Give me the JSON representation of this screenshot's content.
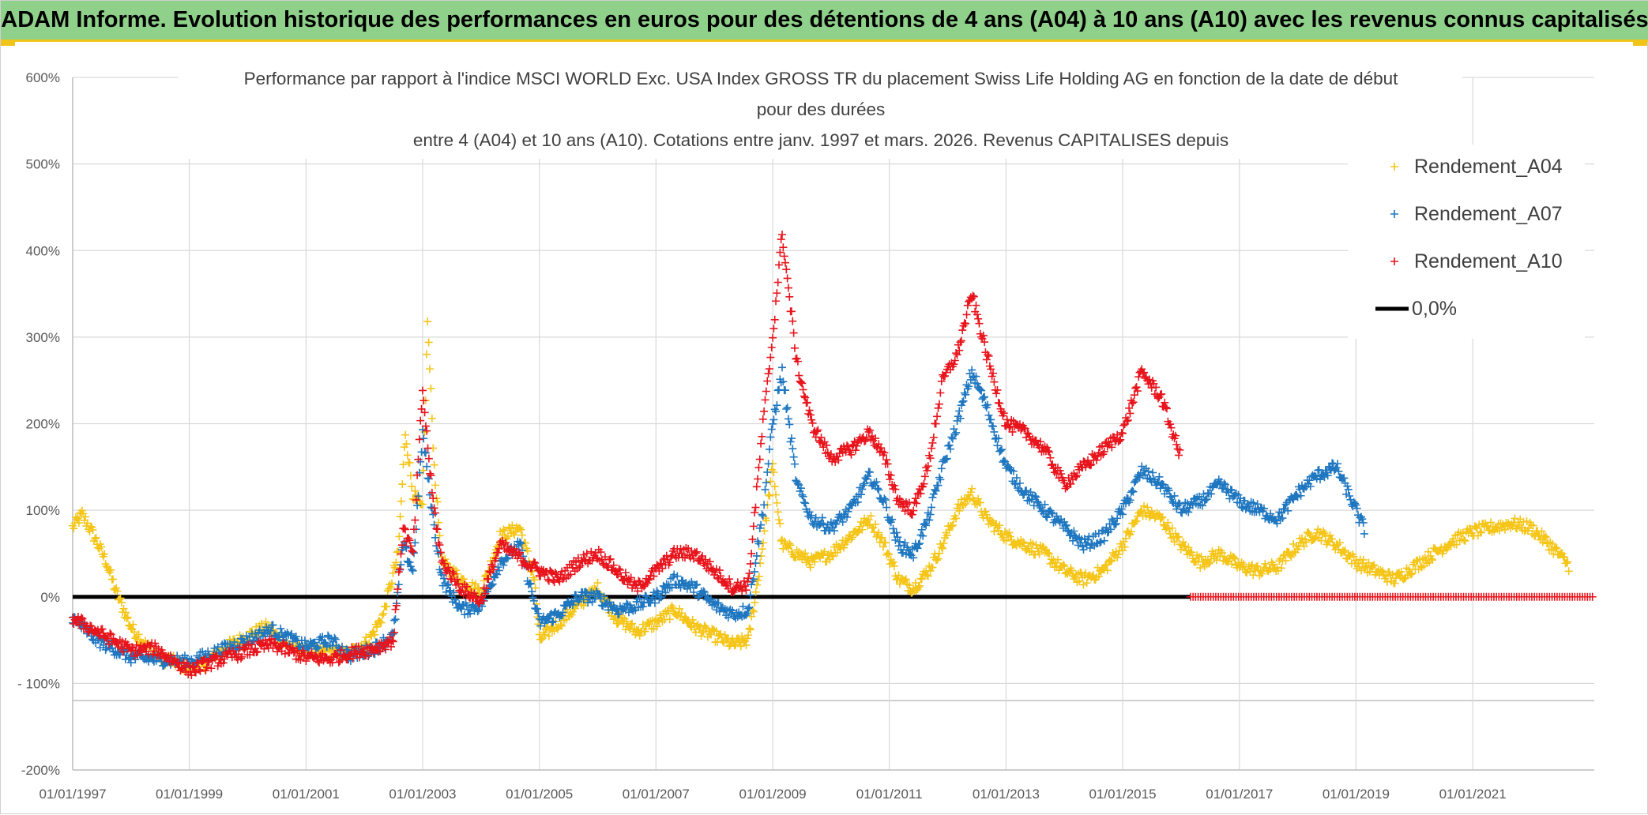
{
  "banner": {
    "text": "ADAM Informe. Evolution historique des performances en euros pour des détentions de 4 ans (A04) à 10 ans (A10) avec les revenus connus capitalisés"
  },
  "colors": {
    "banner_bg": "#8fd18a",
    "banner_accent": "#f0c419",
    "A04": "#f5c518",
    "A07": "#1f77c0",
    "A10": "#e8141c",
    "zero": "#000000"
  },
  "chart_data": {
    "type": "scatter",
    "title_lines": [
      "Performance par rapport à l'indice MSCI WORLD Exc. USA Index GROSS TR  du placement Swiss Life Holding AG en fonction de la date de début",
      "pour des durées",
      "entre 4 (A04) et 10 ans (A10). Cotations entre janv. 1997 et mars. 2026. Revenus CAPITALISES depuis"
    ],
    "xlabel": "",
    "ylabel": "",
    "x_range": [
      "1997-01-01",
      "2023-02-01"
    ],
    "y_range": [
      -200,
      600
    ],
    "y_ticks": [
      -200,
      -100,
      0,
      100,
      200,
      300,
      400,
      500,
      600
    ],
    "y_tick_labels": [
      "-200%",
      "- 100%",
      "0%",
      "100%",
      "200%",
      "300%",
      "400%",
      "500%",
      "600%"
    ],
    "x_tick_labels": [
      "01/01/1997",
      "01/01/1999",
      "01/01/2001",
      "01/01/2003",
      "01/01/2005",
      "01/01/2007",
      "01/01/2009",
      "01/01/2011",
      "01/01/2013",
      "01/01/2015",
      "01/01/2017",
      "01/01/2019",
      "01/01/2021"
    ],
    "grid": true,
    "legend_position": "top-right",
    "series": [
      {
        "name": "Rendement_A04",
        "color": "#f5c518",
        "marker": "+",
        "points": [
          [
            "1997-01-01",
            80
          ],
          [
            "1997-03-01",
            95
          ],
          [
            "1997-05-01",
            75
          ],
          [
            "1997-08-01",
            40
          ],
          [
            "1997-10-01",
            5
          ],
          [
            "1998-01-01",
            -35
          ],
          [
            "1998-04-01",
            -55
          ],
          [
            "1998-07-01",
            -70
          ],
          [
            "1998-10-01",
            -75
          ],
          [
            "1999-01-01",
            -82
          ],
          [
            "1999-04-01",
            -78
          ],
          [
            "1999-08-01",
            -60
          ],
          [
            "2000-01-01",
            -45
          ],
          [
            "2000-05-01",
            -35
          ],
          [
            "2000-09-01",
            -55
          ],
          [
            "2001-01-01",
            -62
          ],
          [
            "2001-06-01",
            -65
          ],
          [
            "2001-10-01",
            -65
          ],
          [
            "2002-02-01",
            -50
          ],
          [
            "2002-05-01",
            -20
          ],
          [
            "2002-08-01",
            50
          ],
          [
            "2002-09-15",
            190
          ],
          [
            "2002-11-01",
            120
          ],
          [
            "2003-01-01",
            100
          ],
          [
            "2003-02-01",
            320
          ],
          [
            "2003-03-15",
            150
          ],
          [
            "2003-05-01",
            40
          ],
          [
            "2003-09-01",
            20
          ],
          [
            "2004-01-01",
            5
          ],
          [
            "2004-05-01",
            70
          ],
          [
            "2004-09-01",
            80
          ],
          [
            "2004-12-01",
            20
          ],
          [
            "2005-01-01",
            -50
          ],
          [
            "2005-05-01",
            -30
          ],
          [
            "2005-09-01",
            -10
          ],
          [
            "2006-01-01",
            10
          ],
          [
            "2006-05-01",
            -25
          ],
          [
            "2006-09-01",
            -40
          ],
          [
            "2007-01-01",
            -30
          ],
          [
            "2007-05-01",
            -15
          ],
          [
            "2007-09-01",
            -35
          ],
          [
            "2008-01-01",
            -45
          ],
          [
            "2008-05-01",
            -55
          ],
          [
            "2008-08-01",
            -50
          ],
          [
            "2008-10-01",
            20
          ],
          [
            "2009-01-01",
            150
          ],
          [
            "2009-03-01",
            60
          ],
          [
            "2009-06-01",
            50
          ],
          [
            "2009-09-01",
            40
          ],
          [
            "2010-01-01",
            50
          ],
          [
            "2010-05-01",
            70
          ],
          [
            "2010-09-01",
            90
          ],
          [
            "2010-12-01",
            60
          ],
          [
            "2011-03-01",
            20
          ],
          [
            "2011-06-01",
            10
          ],
          [
            "2011-09-01",
            30
          ],
          [
            "2011-12-01",
            60
          ],
          [
            "2012-03-01",
            100
          ],
          [
            "2012-06-01",
            120
          ],
          [
            "2012-09-01",
            90
          ],
          [
            "2013-01-01",
            70
          ],
          [
            "2013-05-01",
            60
          ],
          [
            "2013-09-01",
            50
          ],
          [
            "2014-01-01",
            30
          ],
          [
            "2014-05-01",
            20
          ],
          [
            "2014-09-01",
            30
          ],
          [
            "2015-01-01",
            60
          ],
          [
            "2015-05-01",
            100
          ],
          [
            "2015-09-01",
            90
          ],
          [
            "2016-01-01",
            60
          ],
          [
            "2016-05-01",
            40
          ],
          [
            "2016-09-01",
            50
          ],
          [
            "2017-01-01",
            35
          ],
          [
            "2017-05-01",
            30
          ],
          [
            "2017-09-01",
            35
          ],
          [
            "2018-01-01",
            60
          ],
          [
            "2018-05-01",
            75
          ],
          [
            "2018-09-01",
            60
          ],
          [
            "2019-01-01",
            40
          ],
          [
            "2019-05-01",
            30
          ],
          [
            "2019-09-01",
            20
          ],
          [
            "2020-01-01",
            35
          ],
          [
            "2020-05-01",
            50
          ],
          [
            "2020-09-01",
            65
          ],
          [
            "2021-01-01",
            75
          ],
          [
            "2021-05-01",
            80
          ],
          [
            "2021-09-01",
            85
          ],
          [
            "2022-01-01",
            80
          ],
          [
            "2022-05-01",
            60
          ],
          [
            "2022-09-01",
            35
          ]
        ]
      },
      {
        "name": "Rendement_A07",
        "color": "#1f77c0",
        "marker": "+",
        "points": [
          [
            "1997-01-01",
            -25
          ],
          [
            "1997-06-01",
            -50
          ],
          [
            "1998-01-01",
            -70
          ],
          [
            "1998-06-01",
            -72
          ],
          [
            "1999-01-01",
            -75
          ],
          [
            "1999-06-01",
            -65
          ],
          [
            "2000-01-01",
            -50
          ],
          [
            "2000-06-01",
            -38
          ],
          [
            "2001-01-01",
            -58
          ],
          [
            "2001-06-01",
            -50
          ],
          [
            "2001-10-01",
            -68
          ],
          [
            "2002-03-01",
            -60
          ],
          [
            "2002-07-01",
            -45
          ],
          [
            "2002-09-01",
            60
          ],
          [
            "2002-11-01",
            30
          ],
          [
            "2003-01-01",
            190
          ],
          [
            "2003-03-01",
            100
          ],
          [
            "2003-05-01",
            20
          ],
          [
            "2003-09-01",
            -15
          ],
          [
            "2004-01-01",
            -10
          ],
          [
            "2004-05-01",
            40
          ],
          [
            "2004-09-01",
            60
          ],
          [
            "2005-01-01",
            -30
          ],
          [
            "2005-05-01",
            -20
          ],
          [
            "2005-09-01",
            0
          ],
          [
            "2006-01-01",
            0
          ],
          [
            "2006-05-01",
            -15
          ],
          [
            "2006-09-01",
            -10
          ],
          [
            "2007-01-01",
            0
          ],
          [
            "2007-05-01",
            20
          ],
          [
            "2007-09-01",
            10
          ],
          [
            "2008-01-01",
            -10
          ],
          [
            "2008-05-01",
            -20
          ],
          [
            "2008-08-01",
            -15
          ],
          [
            "2008-11-01",
            100
          ],
          [
            "2009-01-01",
            200
          ],
          [
            "2009-03-01",
            260
          ],
          [
            "2009-06-01",
            130
          ],
          [
            "2009-09-01",
            90
          ],
          [
            "2010-01-01",
            80
          ],
          [
            "2010-05-01",
            100
          ],
          [
            "2010-09-01",
            140
          ],
          [
            "2010-12-01",
            110
          ],
          [
            "2011-03-01",
            60
          ],
          [
            "2011-06-01",
            50
          ],
          [
            "2011-09-01",
            90
          ],
          [
            "2011-12-01",
            150
          ],
          [
            "2012-03-01",
            200
          ],
          [
            "2012-06-01",
            260
          ],
          [
            "2012-09-01",
            220
          ],
          [
            "2013-01-01",
            150
          ],
          [
            "2013-05-01",
            120
          ],
          [
            "2013-09-01",
            100
          ],
          [
            "2014-01-01",
            80
          ],
          [
            "2014-05-01",
            60
          ],
          [
            "2014-09-01",
            70
          ],
          [
            "2015-01-01",
            100
          ],
          [
            "2015-05-01",
            145
          ],
          [
            "2015-09-01",
            130
          ],
          [
            "2016-01-01",
            100
          ],
          [
            "2016-05-01",
            110
          ],
          [
            "2016-09-01",
            130
          ],
          [
            "2017-01-01",
            110
          ],
          [
            "2017-05-01",
            100
          ],
          [
            "2017-09-01",
            90
          ],
          [
            "2018-01-01",
            120
          ],
          [
            "2018-05-01",
            140
          ],
          [
            "2018-09-01",
            150
          ],
          [
            "2019-01-01",
            100
          ],
          [
            "2019-03-01",
            75
          ]
        ]
      },
      {
        "name": "Rendement_A10",
        "color": "#e8141c",
        "marker": "+",
        "points": [
          [
            "1997-01-01",
            -25
          ],
          [
            "1997-06-01",
            -40
          ],
          [
            "1998-01-01",
            -62
          ],
          [
            "1998-06-01",
            -60
          ],
          [
            "1999-01-01",
            -85
          ],
          [
            "1999-06-01",
            -75
          ],
          [
            "2000-01-01",
            -62
          ],
          [
            "2000-06-01",
            -55
          ],
          [
            "2001-01-01",
            -70
          ],
          [
            "2001-06-01",
            -72
          ],
          [
            "2001-10-01",
            -65
          ],
          [
            "2002-03-01",
            -60
          ],
          [
            "2002-07-01",
            -50
          ],
          [
            "2002-09-01",
            80
          ],
          [
            "2002-11-01",
            50
          ],
          [
            "2003-01-01",
            240
          ],
          [
            "2003-03-01",
            120
          ],
          [
            "2003-05-01",
            40
          ],
          [
            "2003-09-01",
            10
          ],
          [
            "2004-01-01",
            -5
          ],
          [
            "2004-05-01",
            60
          ],
          [
            "2004-09-01",
            45
          ],
          [
            "2005-01-01",
            30
          ],
          [
            "2005-05-01",
            20
          ],
          [
            "2005-09-01",
            40
          ],
          [
            "2006-01-01",
            50
          ],
          [
            "2006-05-01",
            30
          ],
          [
            "2006-09-01",
            10
          ],
          [
            "2007-01-01",
            30
          ],
          [
            "2007-05-01",
            50
          ],
          [
            "2007-09-01",
            50
          ],
          [
            "2008-01-01",
            30
          ],
          [
            "2008-05-01",
            10
          ],
          [
            "2008-08-01",
            15
          ],
          [
            "2008-11-01",
            200
          ],
          [
            "2009-01-01",
            300
          ],
          [
            "2009-03-01",
            420
          ],
          [
            "2009-06-01",
            270
          ],
          [
            "2009-09-01",
            200
          ],
          [
            "2010-01-01",
            160
          ],
          [
            "2010-05-01",
            170
          ],
          [
            "2010-09-01",
            190
          ],
          [
            "2010-12-01",
            160
          ],
          [
            "2011-03-01",
            110
          ],
          [
            "2011-06-01",
            100
          ],
          [
            "2011-09-01",
            150
          ],
          [
            "2011-12-01",
            250
          ],
          [
            "2012-03-01",
            280
          ],
          [
            "2012-06-01",
            350
          ],
          [
            "2012-09-01",
            280
          ],
          [
            "2013-01-01",
            200
          ],
          [
            "2013-05-01",
            190
          ],
          [
            "2013-09-01",
            170
          ],
          [
            "2014-01-01",
            130
          ],
          [
            "2014-05-01",
            150
          ],
          [
            "2014-09-01",
            170
          ],
          [
            "2015-01-01",
            190
          ],
          [
            "2015-05-01",
            260
          ],
          [
            "2015-09-01",
            230
          ],
          [
            "2016-01-01",
            160
          ]
        ]
      },
      {
        "name": "0,0%",
        "color": "#000000",
        "marker": "line",
        "points": [
          [
            "1997-01-01",
            0
          ],
          [
            "2016-03-01",
            0
          ]
        ]
      }
    ],
    "zero_markers_series": "Rendement_A10",
    "zero_markers_range": [
      "2016-03-01",
      "2023-02-01"
    ]
  }
}
